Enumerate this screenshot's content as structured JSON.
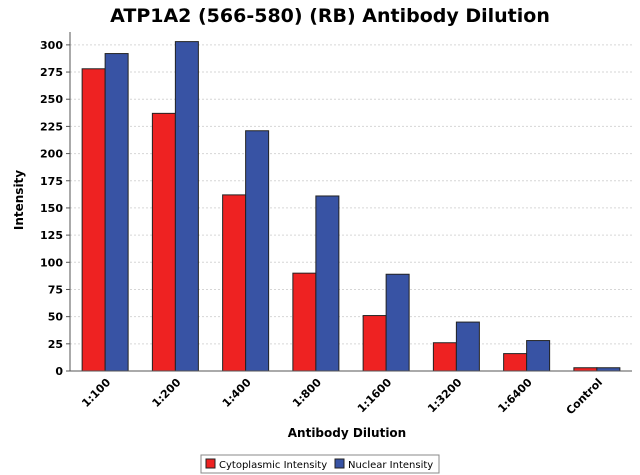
{
  "chart_data": {
    "type": "bar",
    "title": "ATP1A2 (566-580) (RB) Antibody Dilution",
    "xlabel": "Antibody Dilution",
    "ylabel": "Intensity",
    "categories": [
      "1:100",
      "1:200",
      "1:400",
      "1:800",
      "1:1600",
      "1:3200",
      "1:6400",
      "Control"
    ],
    "series": [
      {
        "name": "Cytoplasmic Intensity",
        "color": "#ee2222",
        "values": [
          278,
          237,
          162,
          90,
          51,
          26,
          16,
          3
        ]
      },
      {
        "name": "Nuclear Intensity",
        "color": "#3853a4",
        "values": [
          292,
          303,
          221,
          161,
          89,
          45,
          28,
          3
        ]
      }
    ],
    "ylim": [
      0,
      310
    ],
    "yticks": [
      0,
      25,
      50,
      75,
      100,
      125,
      150,
      175,
      200,
      225,
      250,
      275,
      300
    ],
    "grid": true,
    "legend_position": "bottom-center"
  }
}
